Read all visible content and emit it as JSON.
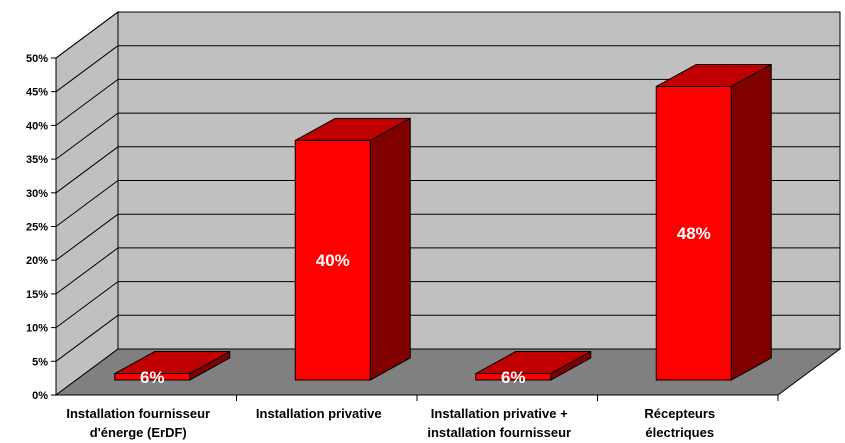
{
  "chart_data": {
    "type": "bar",
    "title": "",
    "xlabel": "",
    "ylabel": "",
    "ylim": [
      0,
      50
    ],
    "y_ticks": [
      "0%",
      "5%",
      "10%",
      "15%",
      "20%",
      "25%",
      "30%",
      "35%",
      "40%",
      "45%",
      "50%"
    ],
    "grid": true,
    "legend": "none",
    "categories": [
      [
        "Installation fournisseur",
        "d'énerge (ErDF)"
      ],
      [
        "Installation privative"
      ],
      [
        "Installation privative +",
        "installation fournisseur"
      ],
      [
        "Récepteurs",
        "électriques"
      ]
    ],
    "values": [
      6,
      40,
      6,
      48
    ],
    "data_labels": [
      "6%",
      "40%",
      "6%",
      "48%"
    ],
    "colors": {
      "bar_front": "#ff0000",
      "bar_top": "#c00000",
      "bar_side": "#800000",
      "back_wall": "#c0c0c0",
      "side_wall": "#c0c0c0",
      "floor": "#808080",
      "gridline": "#000000"
    }
  }
}
